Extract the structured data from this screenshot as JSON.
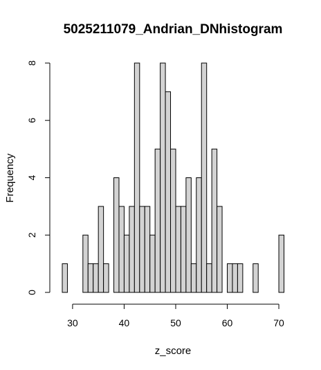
{
  "chart_data": {
    "type": "bar",
    "title": "5025211079_Andrian_DNhistogram",
    "xlabel": "z_score",
    "ylabel": "Frequency",
    "bin_width": 1,
    "bin_starts": [
      28,
      29,
      30,
      31,
      32,
      33,
      34,
      35,
      36,
      37,
      38,
      39,
      40,
      41,
      42,
      43,
      44,
      45,
      46,
      47,
      48,
      49,
      50,
      51,
      52,
      53,
      54,
      55,
      56,
      57,
      58,
      59,
      60,
      61,
      62,
      63,
      64,
      65,
      66,
      67,
      68,
      69,
      70
    ],
    "values": [
      1,
      0,
      0,
      0,
      2,
      1,
      1,
      3,
      1,
      0,
      4,
      3,
      2,
      3,
      8,
      3,
      3,
      2,
      5,
      8,
      7,
      5,
      3,
      3,
      4,
      1,
      4,
      8,
      1,
      5,
      3,
      0,
      1,
      1,
      1,
      0,
      0,
      1,
      0,
      0,
      0,
      0,
      2
    ],
    "xlim": [
      28,
      71
    ],
    "ylim": [
      0,
      8
    ],
    "x_ticks": [
      30,
      40,
      50,
      60,
      70
    ],
    "y_ticks": [
      0,
      2,
      4,
      6,
      8
    ],
    "grid": false,
    "legend": "none"
  }
}
